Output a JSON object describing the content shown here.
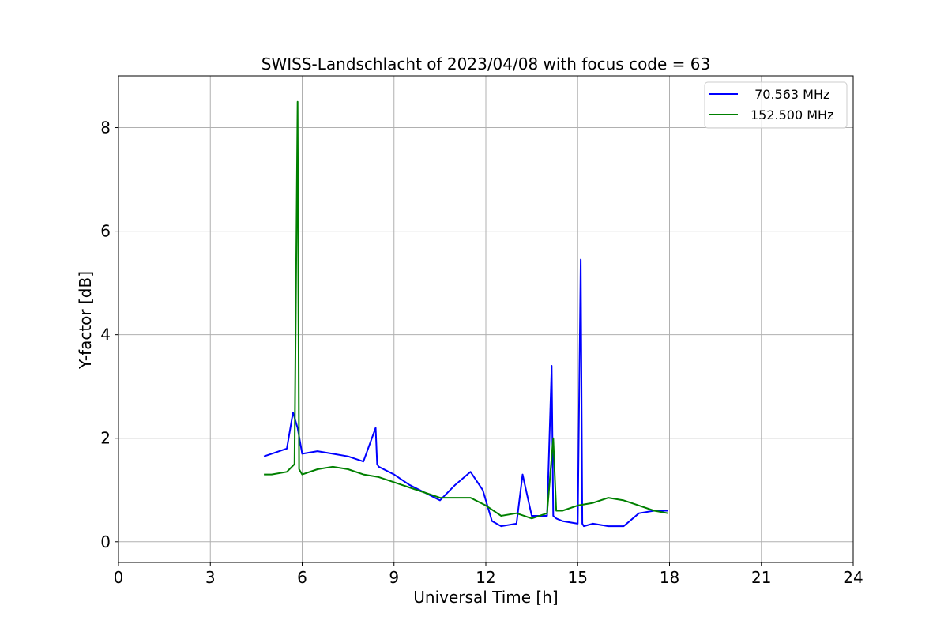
{
  "chart_data": {
    "type": "line",
    "title": "SWISS-Landschlacht of 2023/04/08 with focus code = 63",
    "xlabel": "Universal Time [h]",
    "ylabel": "Y-factor [dB]",
    "xlim": [
      0,
      24
    ],
    "ylim": [
      -0.4,
      9.0
    ],
    "xticks": [
      0,
      3,
      6,
      9,
      12,
      15,
      18,
      21,
      24
    ],
    "xtick_labels": [
      "0",
      "3",
      "6",
      "9",
      "12",
      "15",
      "18",
      "21",
      "24"
    ],
    "yticks": [
      0,
      2,
      4,
      6,
      8
    ],
    "ytick_labels": [
      "0",
      "2",
      "4",
      "6",
      "8"
    ],
    "grid": true,
    "legend_position": "top-right",
    "series": [
      {
        "name": " 70.563 MHz",
        "color": "#0000ff",
        "x": [
          4.75,
          5.0,
          5.5,
          5.7,
          5.85,
          6.0,
          6.5,
          7.0,
          7.5,
          8.0,
          8.4,
          8.45,
          8.5,
          9.0,
          9.5,
          10.0,
          10.5,
          11.0,
          11.5,
          11.9,
          12.2,
          12.5,
          13.0,
          13.2,
          13.5,
          14.0,
          14.15,
          14.2,
          14.3,
          14.5,
          15.0,
          15.1,
          15.15,
          15.2,
          15.5,
          16.0,
          16.5,
          17.0,
          17.5,
          17.95
        ],
        "y": [
          1.65,
          1.7,
          1.8,
          2.5,
          2.2,
          1.7,
          1.75,
          1.7,
          1.65,
          1.55,
          2.2,
          1.5,
          1.45,
          1.3,
          1.1,
          0.95,
          0.8,
          1.1,
          1.35,
          1.0,
          0.4,
          0.3,
          0.35,
          1.3,
          0.5,
          0.5,
          3.4,
          0.5,
          0.45,
          0.4,
          0.35,
          5.45,
          0.35,
          0.3,
          0.35,
          0.3,
          0.3,
          0.55,
          0.6,
          0.6
        ]
      },
      {
        "name": "152.500 MHz",
        "color": "#008000",
        "x": [
          4.75,
          5.0,
          5.5,
          5.75,
          5.85,
          5.9,
          6.0,
          6.5,
          7.0,
          7.5,
          8.0,
          8.5,
          9.0,
          9.5,
          10.0,
          10.5,
          11.0,
          11.5,
          12.0,
          12.5,
          13.0,
          13.5,
          14.0,
          14.2,
          14.3,
          14.5,
          15.0,
          15.5,
          16.0,
          16.5,
          17.0,
          17.5,
          17.95
        ],
        "y": [
          1.3,
          1.3,
          1.35,
          1.5,
          8.5,
          1.4,
          1.3,
          1.4,
          1.45,
          1.4,
          1.3,
          1.25,
          1.15,
          1.05,
          0.95,
          0.85,
          0.85,
          0.85,
          0.7,
          0.5,
          0.55,
          0.45,
          0.55,
          2.0,
          0.6,
          0.6,
          0.7,
          0.75,
          0.85,
          0.8,
          0.7,
          0.6,
          0.55
        ]
      }
    ]
  }
}
